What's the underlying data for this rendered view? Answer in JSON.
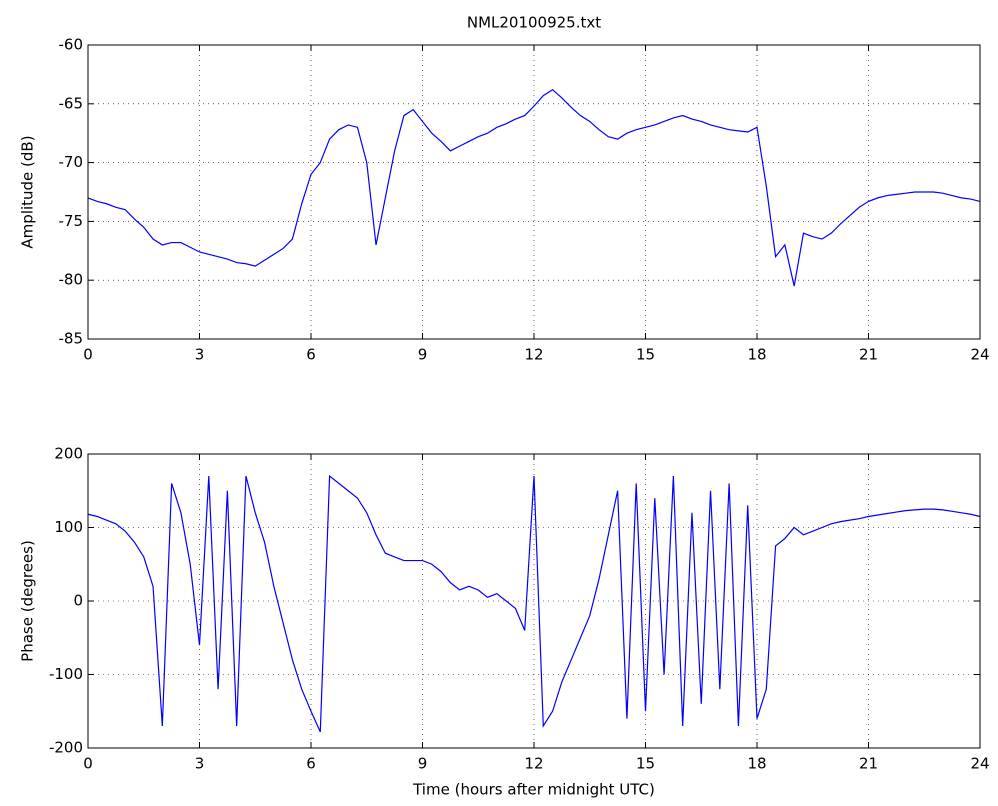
{
  "chart_data": [
    {
      "type": "line",
      "title": "NML20100925.txt",
      "ylabel": "Amplitude (dB)",
      "grid": true,
      "xlim": [
        0,
        24
      ],
      "xticks": [
        0,
        3,
        6,
        9,
        12,
        15,
        18,
        21,
        24
      ],
      "ylim": [
        -85,
        -60
      ],
      "yticks": [
        -85,
        -80,
        -75,
        -70,
        -65,
        -60
      ],
      "x": [
        0,
        0.25,
        0.5,
        0.75,
        1,
        1.25,
        1.5,
        1.75,
        2,
        2.25,
        2.5,
        2.75,
        3,
        3.25,
        3.5,
        3.75,
        4,
        4.25,
        4.5,
        4.75,
        5,
        5.25,
        5.5,
        5.75,
        6,
        6.25,
        6.5,
        6.75,
        7,
        7.25,
        7.5,
        7.75,
        8,
        8.25,
        8.5,
        8.75,
        9,
        9.25,
        9.5,
        9.75,
        10,
        10.25,
        10.5,
        10.75,
        11,
        11.25,
        11.5,
        11.75,
        12,
        12.25,
        12.5,
        12.75,
        13,
        13.25,
        13.5,
        13.75,
        14,
        14.25,
        14.5,
        14.75,
        15,
        15.25,
        15.5,
        15.75,
        16,
        16.25,
        16.5,
        16.75,
        17,
        17.25,
        17.5,
        17.75,
        18,
        18.25,
        18.5,
        18.75,
        19,
        19.25,
        19.5,
        19.75,
        20,
        20.25,
        20.5,
        20.75,
        21,
        21.25,
        21.5,
        21.75,
        22,
        22.25,
        22.5,
        22.75,
        23,
        23.25,
        23.5,
        23.75,
        24
      ],
      "series": [
        {
          "name": "Amplitude",
          "color": "#0000ff",
          "values": [
            -73,
            -73.3,
            -73.5,
            -73.8,
            -74,
            -74.8,
            -75.5,
            -76.5,
            -77,
            -76.8,
            -76.8,
            -77.2,
            -77.6,
            -77.8,
            -78,
            -78.2,
            -78.5,
            -78.6,
            -78.8,
            -78.3,
            -77.8,
            -77.3,
            -76.5,
            -73.5,
            -71,
            -70,
            -68,
            -67.2,
            -66.8,
            -67,
            -70,
            -77,
            -73,
            -69,
            -66,
            -65.5,
            -66.5,
            -67.5,
            -68.2,
            -69,
            -68.6,
            -68.2,
            -67.8,
            -67.5,
            -67,
            -66.7,
            -66.3,
            -66,
            -65.2,
            -64.3,
            -63.8,
            -64.5,
            -65.3,
            -66,
            -66.5,
            -67.2,
            -67.8,
            -68,
            -67.5,
            -67.2,
            -67,
            -66.8,
            -66.5,
            -66.2,
            -66,
            -66.3,
            -66.5,
            -66.8,
            -67,
            -67.2,
            -67.3,
            -67.4,
            -67,
            -72,
            -78,
            -77,
            -80.5,
            -76,
            -76.3,
            -76.5,
            -76,
            -75.2,
            -74.5,
            -73.8,
            -73.3,
            -73,
            -72.8,
            -72.7,
            -72.6,
            -72.5,
            -72.5,
            -72.5,
            -72.6,
            -72.8,
            -73,
            -73.1,
            -73.3
          ]
        }
      ]
    },
    {
      "type": "line",
      "xlabel": "Time (hours after midnight UTC)",
      "ylabel": "Phase (degrees)",
      "grid": true,
      "xlim": [
        0,
        24
      ],
      "xticks": [
        0,
        3,
        6,
        9,
        12,
        15,
        18,
        21,
        24
      ],
      "ylim": [
        -200,
        200
      ],
      "yticks": [
        -200,
        -100,
        0,
        100,
        200
      ],
      "x": [
        0,
        0.25,
        0.5,
        0.75,
        1,
        1.25,
        1.5,
        1.75,
        2,
        2.25,
        2.5,
        2.75,
        3,
        3.25,
        3.5,
        3.75,
        4,
        4.25,
        4.5,
        4.75,
        5,
        5.25,
        5.5,
        5.75,
        6,
        6.25,
        6.5,
        6.75,
        7,
        7.25,
        7.5,
        7.75,
        8,
        8.25,
        8.5,
        8.75,
        9,
        9.25,
        9.5,
        9.75,
        10,
        10.25,
        10.5,
        10.75,
        11,
        11.25,
        11.5,
        11.75,
        12,
        12.25,
        12.5,
        12.75,
        13,
        13.25,
        13.5,
        13.75,
        14,
        14.25,
        14.5,
        14.75,
        15,
        15.25,
        15.5,
        15.75,
        16,
        16.25,
        16.5,
        16.75,
        17,
        17.25,
        17.5,
        17.75,
        18,
        18.25,
        18.5,
        18.75,
        19,
        19.25,
        19.5,
        19.75,
        20,
        20.25,
        20.5,
        20.75,
        21,
        21.25,
        21.5,
        21.75,
        22,
        22.25,
        22.5,
        22.75,
        23,
        23.25,
        23.5,
        23.75,
        24
      ],
      "series": [
        {
          "name": "Phase",
          "color": "#0000ff",
          "values": [
            118,
            115,
            110,
            105,
            95,
            80,
            60,
            20,
            -170,
            160,
            120,
            50,
            -60,
            170,
            -120,
            150,
            -170,
            170,
            120,
            80,
            20,
            -30,
            -80,
            -120,
            -150,
            -178,
            170,
            160,
            150,
            140,
            120,
            90,
            65,
            60,
            55,
            55,
            55,
            50,
            40,
            25,
            15,
            20,
            15,
            5,
            10,
            0,
            -10,
            -40,
            170,
            -170,
            -150,
            -110,
            -80,
            -50,
            -20,
            30,
            90,
            150,
            -160,
            160,
            -150,
            140,
            -100,
            170,
            -170,
            120,
            -140,
            150,
            -120,
            160,
            -170,
            130,
            -160,
            -120,
            75,
            85,
            100,
            90,
            95,
            100,
            105,
            108,
            110,
            112,
            115,
            117,
            119,
            121,
            123,
            124,
            125,
            125,
            124,
            122,
            120,
            118,
            115
          ]
        }
      ]
    }
  ]
}
